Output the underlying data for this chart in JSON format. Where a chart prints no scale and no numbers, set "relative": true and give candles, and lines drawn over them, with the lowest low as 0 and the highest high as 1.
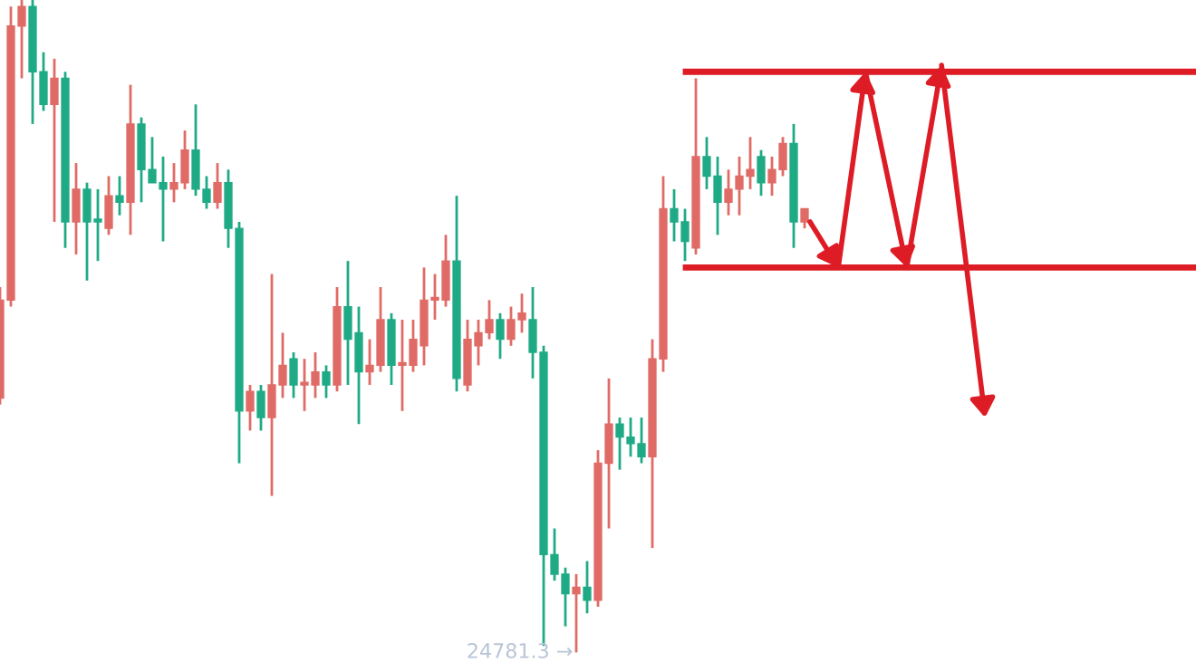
{
  "chart_data": {
    "type": "candlestick",
    "relative": true,
    "categories": [
      null,
      null,
      null,
      null,
      null,
      null,
      null,
      null,
      null,
      null,
      null,
      null,
      null,
      null,
      null,
      null,
      null,
      null,
      null,
      null,
      null,
      null,
      null,
      null,
      null,
      null,
      null,
      null,
      null,
      null,
      null,
      null,
      null,
      null,
      null,
      null,
      null,
      null,
      null,
      null,
      null,
      null,
      null,
      null,
      null,
      null,
      null,
      null,
      null,
      null,
      null,
      null,
      null,
      null,
      null,
      null,
      null,
      null,
      null,
      null,
      null,
      null,
      null,
      null,
      null,
      null,
      null,
      null,
      null,
      null,
      null,
      null,
      null,
      null,
      null
    ],
    "ohlc": [
      [
        0.39,
        0.56,
        0.38,
        0.54
      ],
      [
        0.54,
        0.99,
        0.53,
        0.96
      ],
      [
        0.96,
        1,
        0.88,
        0.99
      ],
      [
        0.99,
        1,
        0.81,
        0.89
      ],
      [
        0.89,
        0.92,
        0.83,
        0.84
      ],
      [
        0.84,
        0.91,
        0.66,
        0.88
      ],
      [
        0.88,
        0.89,
        0.62,
        0.66
      ],
      [
        0.66,
        0.75,
        0.61,
        0.71
      ],
      [
        0.71,
        0.72,
        0.57,
        0.66
      ],
      [
        0.66,
        0.71,
        0.6,
        0.66
      ],
      [
        0.65,
        0.73,
        0.64,
        0.7
      ],
      [
        0.7,
        0.73,
        0.67,
        0.69
      ],
      [
        0.69,
        0.87,
        0.64,
        0.81
      ],
      [
        0.81,
        0.82,
        0.69,
        0.74
      ],
      [
        0.74,
        0.79,
        0.72,
        0.72
      ],
      [
        0.72,
        0.76,
        0.63,
        0.71
      ],
      [
        0.71,
        0.75,
        0.69,
        0.72
      ],
      [
        0.72,
        0.8,
        0.71,
        0.77
      ],
      [
        0.77,
        0.84,
        0.7,
        0.71
      ],
      [
        0.71,
        0.73,
        0.68,
        0.69
      ],
      [
        0.69,
        0.75,
        0.68,
        0.72
      ],
      [
        0.72,
        0.74,
        0.62,
        0.65
      ],
      [
        0.65,
        0.66,
        0.29,
        0.37
      ],
      [
        0.37,
        0.41,
        0.34,
        0.4
      ],
      [
        0.4,
        0.41,
        0.34,
        0.36
      ],
      [
        0.36,
        0.58,
        0.24,
        0.41
      ],
      [
        0.41,
        0.49,
        0.39,
        0.44
      ],
      [
        0.45,
        0.46,
        0.39,
        0.41
      ],
      [
        0.41,
        0.45,
        0.37,
        0.41
      ],
      [
        0.41,
        0.46,
        0.39,
        0.43
      ],
      [
        0.43,
        0.44,
        0.39,
        0.41
      ],
      [
        0.41,
        0.56,
        0.4,
        0.53
      ],
      [
        0.53,
        0.6,
        0.41,
        0.48
      ],
      [
        0.49,
        0.53,
        0.35,
        0.43
      ],
      [
        0.43,
        0.48,
        0.41,
        0.44
      ],
      [
        0.44,
        0.56,
        0.43,
        0.51
      ],
      [
        0.51,
        0.52,
        0.41,
        0.44
      ],
      [
        0.44,
        0.51,
        0.37,
        0.44
      ],
      [
        0.44,
        0.51,
        0.43,
        0.48
      ],
      [
        0.47,
        0.59,
        0.44,
        0.54
      ],
      [
        0.54,
        0.58,
        0.51,
        0.54
      ],
      [
        0.54,
        0.64,
        0.53,
        0.6
      ],
      [
        0.6,
        0.7,
        0.4,
        0.42
      ],
      [
        0.41,
        0.51,
        0.4,
        0.48
      ],
      [
        0.47,
        0.51,
        0.44,
        0.49
      ],
      [
        0.49,
        0.54,
        0.48,
        0.51
      ],
      [
        0.51,
        0.52,
        0.45,
        0.48
      ],
      [
        0.48,
        0.53,
        0.47,
        0.51
      ],
      [
        0.51,
        0.55,
        0.49,
        0.52
      ],
      [
        0.51,
        0.56,
        0.42,
        0.46
      ],
      [
        0.46,
        0.47,
        0.01,
        0.15
      ],
      [
        0.15,
        0.19,
        0.11,
        0.12
      ],
      [
        0.12,
        0.13,
        0.04,
        0.09
      ],
      [
        0.09,
        0.12,
        0,
        0.1
      ],
      [
        0.1,
        0.14,
        0.06,
        0.08
      ],
      [
        0.08,
        0.31,
        0.07,
        0.29
      ],
      [
        0.29,
        0.42,
        0.19,
        0.35
      ],
      [
        0.35,
        0.36,
        0.28,
        0.33
      ],
      [
        0.33,
        0.36,
        0.3,
        0.32
      ],
      [
        0.32,
        0.36,
        0.29,
        0.3
      ],
      [
        0.3,
        0.48,
        0.16,
        0.45
      ],
      [
        0.45,
        0.73,
        0.43,
        0.68
      ],
      [
        0.68,
        0.71,
        0.63,
        0.66
      ],
      [
        0.66,
        0.68,
        0.6,
        0.63
      ],
      [
        0.62,
        0.88,
        0.61,
        0.76
      ],
      [
        0.76,
        0.79,
        0.71,
        0.73
      ],
      [
        0.73,
        0.76,
        0.64,
        0.69
      ],
      [
        0.69,
        0.74,
        0.67,
        0.71
      ],
      [
        0.71,
        0.76,
        0.67,
        0.73
      ],
      [
        0.73,
        0.79,
        0.71,
        0.74
      ],
      [
        0.76,
        0.77,
        0.7,
        0.72
      ],
      [
        0.72,
        0.76,
        0.7,
        0.74
      ],
      [
        0.74,
        0.79,
        0.73,
        0.78
      ],
      [
        0.78,
        0.81,
        0.62,
        0.66
      ],
      [
        0.66,
        0.68,
        0.65,
        0.68
      ]
    ],
    "colors": [
      "#e06b66",
      "#e06b66",
      "#e06b66",
      "#1faa86",
      "#1faa86",
      "#e06b66",
      "#1faa86",
      "#e06b66",
      "#1faa86",
      "#1faa86",
      "#e06b66",
      "#1faa86",
      "#e06b66",
      "#1faa86",
      "#1faa86",
      "#1faa86",
      "#e06b66",
      "#e06b66",
      "#1faa86",
      "#1faa86",
      "#e06b66",
      "#1faa86",
      "#1faa86",
      "#e06b66",
      "#1faa86",
      "#e06b66",
      "#e06b66",
      "#1faa86",
      "#e06b66",
      "#e06b66",
      "#1faa86",
      "#e06b66",
      "#1faa86",
      "#1faa86",
      "#e06b66",
      "#e06b66",
      "#1faa86",
      "#e06b66",
      "#e06b66",
      "#e06b66",
      "#e06b66",
      "#e06b66",
      "#1faa86",
      "#e06b66",
      "#e06b66",
      "#e06b66",
      "#1faa86",
      "#e06b66",
      "#e06b66",
      "#1faa86",
      "#1faa86",
      "#1faa86",
      "#1faa86",
      "#e06b66",
      "#1faa86",
      "#e06b66",
      "#e06b66",
      "#1faa86",
      "#1faa86",
      "#1faa86",
      "#e06b66",
      "#e06b66",
      "#1faa86",
      "#1faa86",
      "#e06b66",
      "#1faa86",
      "#1faa86",
      "#e06b66",
      "#e06b66",
      "#e06b66",
      "#1faa86",
      "#e06b66",
      "#e06b66",
      "#1faa86",
      "#e06b66"
    ],
    "annotations": [
      "24781.3 →"
    ],
    "ref_lines": [
      {
        "axis": "y",
        "value": 0.89,
        "color": "#dd1c25"
      },
      {
        "axis": "y",
        "value": 0.59,
        "color": "#dd1c25"
      }
    ]
  }
}
